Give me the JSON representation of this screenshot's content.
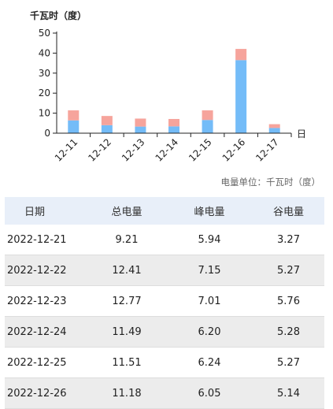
{
  "chart": {
    "unit_title": "千瓦时（度）",
    "x_unit": "日",
    "colors": {
      "valley": "#74bcf8",
      "peak": "#f6a49c",
      "axis": "#222222"
    }
  },
  "chart_data": {
    "type": "bar",
    "stacked": true,
    "categories": [
      "12-11",
      "12-12",
      "12-13",
      "12-14",
      "12-15",
      "12-16",
      "12-17"
    ],
    "series": [
      {
        "key": "valley",
        "values": [
          6.4,
          4.0,
          3.3,
          3.4,
          6.6,
          36.5,
          2.6
        ]
      },
      {
        "key": "peak",
        "values": [
          5.0,
          4.6,
          4.0,
          3.7,
          4.8,
          5.6,
          1.9
        ]
      }
    ],
    "ylim": [
      0,
      50
    ],
    "yticks": [
      0,
      10,
      20,
      30,
      40,
      50
    ],
    "ylabel": "千瓦时（度）",
    "xlabel": "日",
    "grid": false
  },
  "unit_note": "电量单位：千瓦时（度）",
  "table": {
    "headers": [
      "日期",
      "总电量",
      "峰电量",
      "谷电量"
    ],
    "rows": [
      [
        "2022-12-21",
        "9.21",
        "5.94",
        "3.27"
      ],
      [
        "2022-12-22",
        "12.41",
        "7.15",
        "5.27"
      ],
      [
        "2022-12-23",
        "12.77",
        "7.01",
        "5.76"
      ],
      [
        "2022-12-24",
        "11.49",
        "6.20",
        "5.28"
      ],
      [
        "2022-12-25",
        "11.51",
        "6.24",
        "5.27"
      ],
      [
        "2022-12-26",
        "11.18",
        "6.05",
        "5.14"
      ]
    ]
  }
}
